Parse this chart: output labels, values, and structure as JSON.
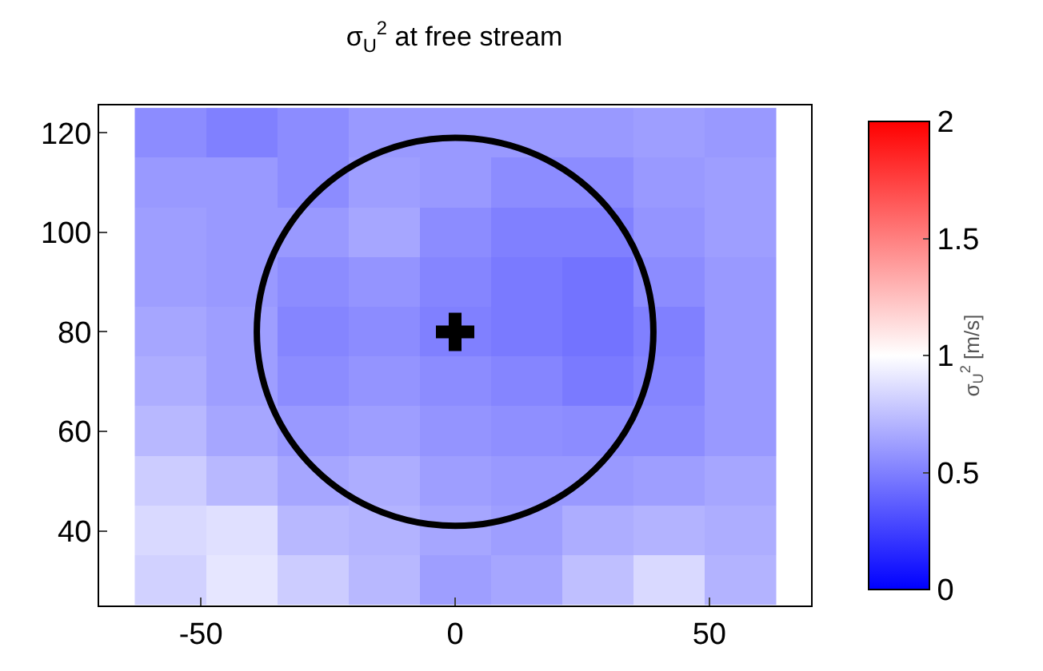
{
  "chart_data": {
    "type": "heatmap",
    "title": "σ$_{U}$$^{2}$ at free stream",
    "clabel": "σ$_{U}$$^{2}$ [m/s]",
    "x": [
      -56,
      -42,
      -28,
      -14,
      0,
      14,
      28,
      42,
      56
    ],
    "y": [
      120,
      110,
      100,
      90,
      80,
      70,
      60,
      50,
      40,
      30
    ],
    "cells": [
      [
        0.55,
        0.5,
        0.55,
        0.6,
        0.6,
        0.6,
        0.6,
        0.62,
        0.6
      ],
      [
        0.6,
        0.6,
        0.55,
        0.62,
        0.6,
        0.55,
        0.55,
        0.6,
        0.62
      ],
      [
        0.62,
        0.6,
        0.6,
        0.65,
        0.55,
        0.5,
        0.5,
        0.58,
        0.62
      ],
      [
        0.62,
        0.6,
        0.55,
        0.58,
        0.52,
        0.48,
        0.45,
        0.55,
        0.6
      ],
      [
        0.65,
        0.62,
        0.52,
        0.55,
        0.5,
        0.48,
        0.45,
        0.5,
        0.6
      ],
      [
        0.68,
        0.62,
        0.55,
        0.58,
        0.55,
        0.52,
        0.48,
        0.52,
        0.6
      ],
      [
        0.72,
        0.65,
        0.6,
        0.62,
        0.58,
        0.56,
        0.55,
        0.55,
        0.6
      ],
      [
        0.8,
        0.72,
        0.65,
        0.68,
        0.62,
        0.6,
        0.6,
        0.62,
        0.65
      ],
      [
        0.85,
        0.88,
        0.72,
        0.7,
        0.65,
        0.62,
        0.68,
        0.7,
        0.68
      ],
      [
        0.82,
        0.9,
        0.8,
        0.72,
        0.62,
        0.65,
        0.75,
        0.85,
        0.7
      ]
    ],
    "clim": [
      0,
      2
    ],
    "cticks": [
      0,
      0.5,
      1,
      1.5,
      2
    ],
    "colors": [
      "#0000ff",
      "#ffffff",
      "#ff0000"
    ],
    "series": [
      {
        "type": "scatter",
        "color": "#000000",
        "marker": "cross",
        "x": [
          0
        ],
        "values": [
          80
        ]
      }
    ],
    "xlim": [
      -70,
      70
    ],
    "xticks": [
      -50,
      0,
      50
    ],
    "ylim": [
      25,
      125.5
    ],
    "yticks": [
      40,
      60,
      80,
      100,
      120
    ]
  }
}
